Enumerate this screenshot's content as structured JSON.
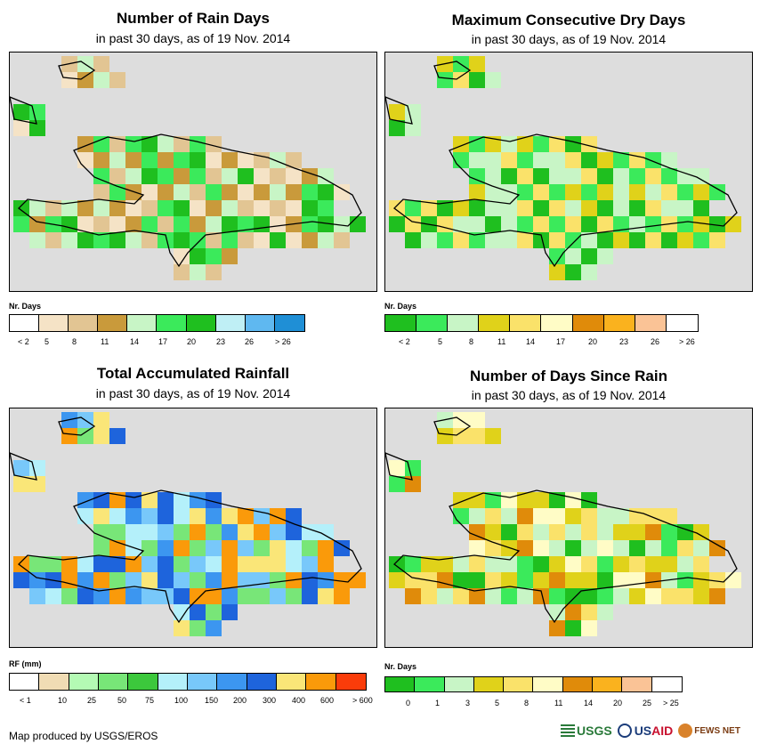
{
  "panels": [
    {
      "id": "rain-days",
      "title": "Number of Rain Days",
      "subtitle": "in past 30 days, as of 19 Nov. 2014",
      "legend_title": "Nr. Days",
      "legend_colors": [
        "#ffffff",
        "#f5e3c6",
        "#e2c593",
        "#c99a3b",
        "#c8f5c6",
        "#3bea5b",
        "#1fbf1f",
        "#bfeff5",
        "#5fb8f0",
        "#1f8fd6"
      ],
      "legend_labels": [
        "< 2",
        "5",
        "8",
        "11",
        "14",
        "17",
        "20",
        "23",
        "26",
        "> 26"
      ],
      "map_cells": "rain_days"
    },
    {
      "id": "dry-days",
      "title": "Maximum Consecutive Dry Days",
      "subtitle": "in past 30 days, as of 19 Nov. 2014",
      "legend_title": "Nr. Days",
      "legend_colors": [
        "#1fbf1f",
        "#3bea5b",
        "#c8f5c6",
        "#e0d21a",
        "#fae26a",
        "#fffcc6",
        "#e08b0a",
        "#fab21e",
        "#fac396",
        "#ffffff"
      ],
      "legend_labels": [
        "< 2",
        "5",
        "8",
        "11",
        "14",
        "17",
        "20",
        "23",
        "26",
        "> 26"
      ],
      "map_cells": "dry_days"
    },
    {
      "id": "rainfall",
      "title": "Total Accumulated Rainfall",
      "subtitle": "in past 30 days, as of 19 Nov. 2014",
      "legend_title": "RF (mm)",
      "legend_colors": [
        "#ffffff",
        "#f0dcb4",
        "#b4fab4",
        "#78e678",
        "#3cc83c",
        "#b4f0fa",
        "#78c8fa",
        "#3c96f0",
        "#1e64dc",
        "#fae678",
        "#fa9a0a",
        "#fa3c0a"
      ],
      "legend_labels": [
        "< 1",
        "10",
        "25",
        "50",
        "75",
        "100",
        "150",
        "200",
        "300",
        "400",
        "600",
        "> 600"
      ],
      "map_cells": "rainfall"
    },
    {
      "id": "since-rain",
      "title": "Number of Days Since Rain",
      "subtitle": "in past 30 days, as of 19 Nov. 2014",
      "legend_title": "Nr. Days",
      "legend_colors": [
        "#1fbf1f",
        "#3bea5b",
        "#c8f5c6",
        "#e0d21a",
        "#fae26a",
        "#fffcc6",
        "#e08b0a",
        "#fab21e",
        "#fac396",
        "#ffffff"
      ],
      "legend_labels": [
        "0",
        "1",
        "3",
        "5",
        "8",
        "11",
        "14",
        "20",
        "25",
        "> 25"
      ],
      "map_cells": "since_rain"
    }
  ],
  "footer": "Map produced by USGS/EROS",
  "logos": {
    "usgs": "USGS",
    "usaid_a": "US",
    "usaid_b": "AID",
    "fews": "FEWS NET"
  },
  "icons": [
    "usgs-logo-icon",
    "usaid-seal-icon",
    "fews-net-logo-icon"
  ]
}
